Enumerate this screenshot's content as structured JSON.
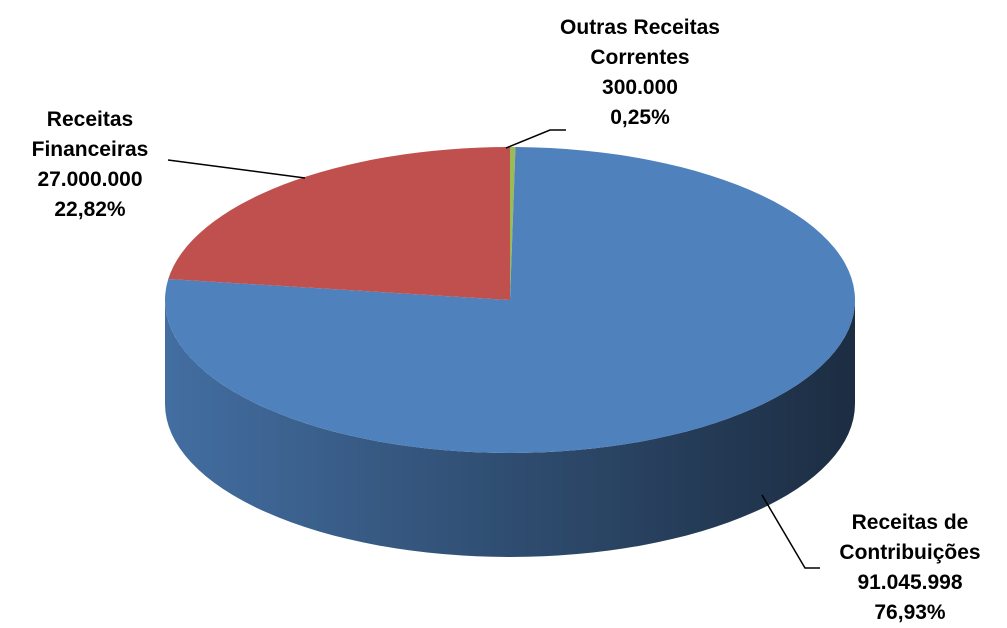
{
  "chart_data": {
    "type": "pie3d",
    "categories": [
      "Outras Receitas Correntes",
      "Receitas de Contribuições",
      "Receitas Financeiras"
    ],
    "values": [
      300000,
      91045998,
      27000000
    ],
    "value_labels": [
      "300.000",
      "91.045.998",
      "27.000.000"
    ],
    "percentages": [
      0.25,
      76.93,
      22.82
    ],
    "percentage_labels": [
      "0,25%",
      "76,93%",
      "22,82%"
    ],
    "colors": [
      "#9bbb59",
      "#4f81bd",
      "#c0504d"
    ]
  }
}
